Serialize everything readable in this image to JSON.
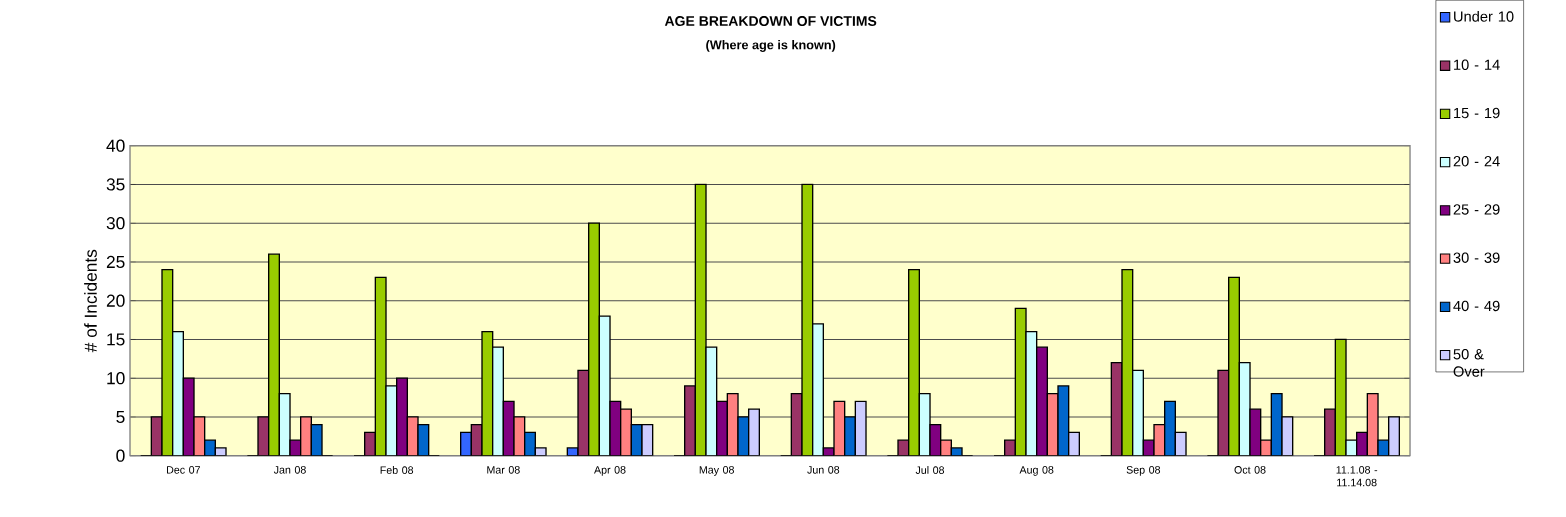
{
  "chart_data": {
    "type": "bar",
    "title": "AGE BREAKDOWN OF VICTIMS",
    "subtitle": "(Where age is known)",
    "ylabel": "# of Incidents",
    "categories": [
      "Dec 07",
      "Jan 08",
      "Feb 08",
      "Mar 08",
      "Apr 08",
      "May 08",
      "Jun 08",
      "Jul 08",
      "Aug 08",
      "Sep 08",
      "Oct 08",
      "11.1.08 - 11.14.08"
    ],
    "series": [
      {
        "name": "Under 10",
        "color": "#3366ff",
        "values": [
          0,
          0,
          0,
          3,
          1,
          0,
          0,
          0,
          0,
          0,
          0,
          0
        ]
      },
      {
        "name": "10 - 14",
        "color": "#993366",
        "values": [
          5,
          5,
          3,
          4,
          11,
          9,
          8,
          2,
          2,
          12,
          11,
          6
        ]
      },
      {
        "name": "15 - 19",
        "color": "#99cc00",
        "values": [
          24,
          26,
          23,
          16,
          30,
          35,
          35,
          24,
          19,
          24,
          23,
          15
        ]
      },
      {
        "name": "20 - 24",
        "color": "#ccffff",
        "values": [
          16,
          8,
          9,
          14,
          18,
          14,
          17,
          8,
          16,
          11,
          12,
          2
        ]
      },
      {
        "name": "25 - 29",
        "color": "#800080",
        "values": [
          10,
          2,
          10,
          7,
          7,
          7,
          1,
          4,
          14,
          2,
          6,
          3
        ]
      },
      {
        "name": "30 - 39",
        "color": "#ff8080",
        "values": [
          5,
          5,
          5,
          5,
          6,
          8,
          7,
          2,
          8,
          4,
          2,
          8
        ]
      },
      {
        "name": "40 - 49",
        "color": "#0066cc",
        "values": [
          2,
          4,
          4,
          3,
          4,
          5,
          5,
          1,
          9,
          7,
          8,
          2
        ]
      },
      {
        "name": "50 & Over",
        "color": "#ccccff",
        "values": [
          1,
          0,
          0,
          1,
          4,
          6,
          7,
          0,
          3,
          3,
          5,
          5
        ]
      }
    ],
    "ylim": [
      0,
      40
    ],
    "yticks": [
      0,
      5,
      10,
      15,
      20,
      25,
      30,
      35,
      40
    ],
    "grid": "y",
    "legend": "right"
  }
}
